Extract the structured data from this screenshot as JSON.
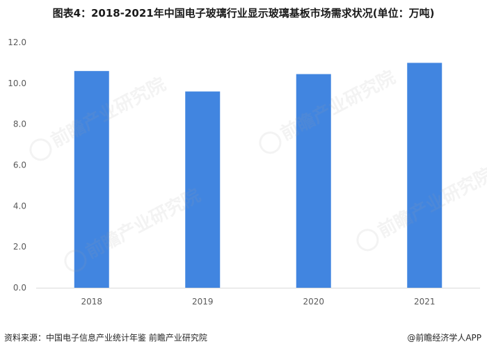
{
  "chart_data": {
    "type": "bar",
    "title": "图表4：2018-2021年中国电子玻璃行业显示玻璃基板市场需求状况(单位：万吨)",
    "categories": [
      "2018",
      "2019",
      "2020",
      "2021"
    ],
    "values": [
      10.6,
      9.6,
      10.45,
      11.0
    ],
    "ylim": [
      0,
      12
    ],
    "yticks": [
      "0.0",
      "2.0",
      "4.0",
      "6.0",
      "8.0",
      "10.0",
      "12.0"
    ],
    "ytick_values": [
      0,
      2,
      4,
      6,
      8,
      10,
      12
    ],
    "bar_color": "#4185e0",
    "grid": false
  },
  "footer": {
    "source": "资料来源：中国电子信息产业统计年鉴 前瞻产业研究院",
    "brand": "@前瞻经济学人APP"
  },
  "watermark": {
    "text": "前瞻产业研究院"
  }
}
